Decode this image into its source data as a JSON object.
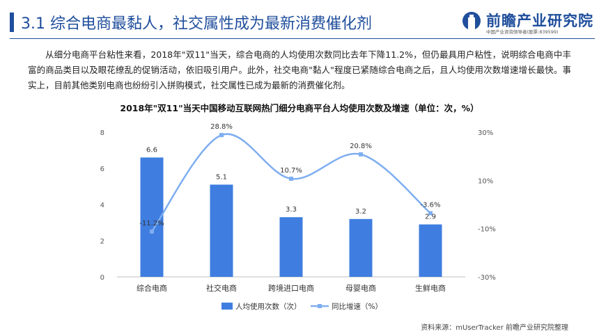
{
  "header": {
    "title": "3.1  综合电商最黏人，社交属性成为最新消费催化剂",
    "logo_name": "前瞻产业研究院",
    "logo_tagline": "中国产业咨询领导者(股票:839599)"
  },
  "paragraph": "从细分电商平台粘性来看，2018年\"双11\"当天，综合电商的人均使用次数同比去年下降11.2%，但仍最具用户粘性，说明综合电商中丰富的商品类目以及眼花缭乱的促销活动，依旧吸引用户。此外，社交电商\"黏人\"程度已紧随综合电商之后，且人均使用次数增速增长最快。事实上，目前其他类别电商也纷纷引入拼购模式，社交属性已成为最新的消费催化剂。",
  "source": "资料来源：mUserTracker 前瞻产业研究院整理",
  "colors": {
    "bar": "#3f7ee0",
    "line": "#7eaef0",
    "accent": "#1f4e9c"
  },
  "chart_data": {
    "type": "bar",
    "title": "2018年\"双11\"当天中国移动互联网热门细分电商平台人均使用次数及增速（单位：次，%）",
    "categories": [
      "综合电商",
      "社交电商",
      "跨境进口电商",
      "母婴电商",
      "生鲜电商"
    ],
    "series": [
      {
        "name": "人均使用次数（次）",
        "type": "bar",
        "axis": "left",
        "values": [
          6.6,
          5.1,
          3.3,
          3.2,
          2.9
        ],
        "labels": [
          "6.6",
          "5.1",
          "3.3",
          "3.2",
          "2.9"
        ]
      },
      {
        "name": "同比增速（%）",
        "type": "line",
        "smooth": true,
        "axis": "right",
        "values": [
          -11.2,
          28.8,
          10.7,
          20.8,
          -3.6
        ],
        "labels": [
          "-11.2%",
          "28.8%",
          "10.7%",
          "20.8%",
          "-3.6%"
        ]
      }
    ],
    "y_left": {
      "min": 0,
      "max": 8,
      "ticks": [
        0,
        2,
        4,
        6,
        8
      ],
      "tick_labels": [
        "0",
        "2",
        "4",
        "6",
        "8"
      ]
    },
    "y_right": {
      "min": -30,
      "max": 30,
      "ticks": [
        -30,
        -10,
        10,
        30
      ],
      "tick_labels": [
        "-30%",
        "-10%",
        "10%",
        "30%"
      ]
    },
    "legend_position": "bottom",
    "grid": false
  }
}
